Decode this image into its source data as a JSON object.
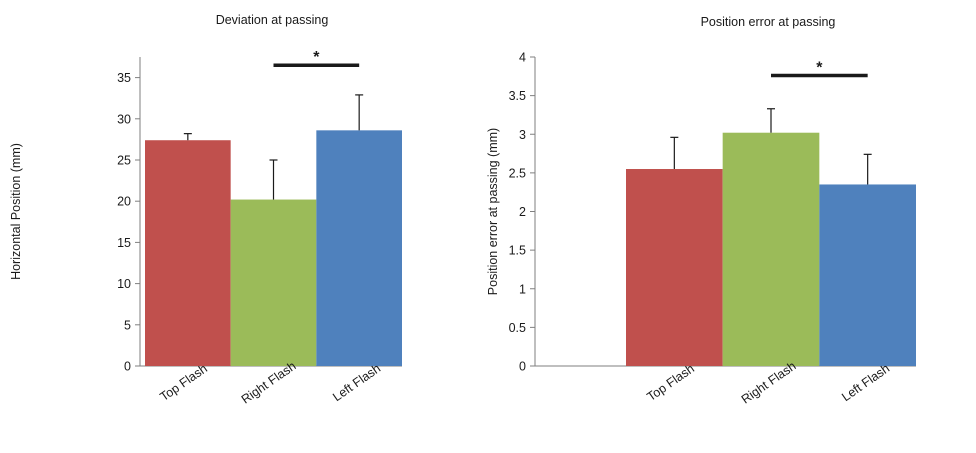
{
  "colors": {
    "top_flash": "#C0504D",
    "right_flash": "#9BBB59",
    "left_flash": "#4F81BD",
    "axis": "#7f7f7f",
    "error_bar": "#1a1a1a",
    "significance_bar": "#1a1a1a"
  },
  "chart_data": [
    {
      "type": "bar",
      "title": "Deviation at passing",
      "xlabel": "",
      "ylabel": "Horizontal Position (mm)",
      "categories": [
        "Top Flash",
        "Right Flash",
        "Left Flash"
      ],
      "values": [
        27.4,
        20.2,
        28.6
      ],
      "errors": [
        0.8,
        4.8,
        4.3
      ],
      "ylim": [
        0,
        37.5
      ],
      "yticks": [
        0,
        5,
        10,
        15,
        20,
        25,
        30,
        35
      ],
      "ytick_labels": [
        "0",
        "5",
        "10",
        "15",
        "20",
        "25",
        "30",
        "35"
      ],
      "grid": false,
      "legend": "none",
      "significance": {
        "from": "Right Flash",
        "to": "Left Flash",
        "y": 36.5,
        "label": "*"
      }
    },
    {
      "type": "bar",
      "title": "Position error at passing",
      "xlabel": "",
      "ylabel": "Position error at passing  (mm)",
      "categories": [
        "Top Flash",
        "Right Flash",
        "Left Flash"
      ],
      "values": [
        2.55,
        3.02,
        2.35
      ],
      "errors": [
        0.41,
        0.31,
        0.39
      ],
      "ylim": [
        0,
        4
      ],
      "yticks": [
        0,
        0.5,
        1,
        1.5,
        2,
        2.5,
        3,
        3.5,
        4
      ],
      "ytick_labels": [
        "0",
        "0.5",
        "1",
        "1.5",
        "2",
        "2.5",
        "3",
        "3.5",
        "4"
      ],
      "grid": false,
      "legend": "none",
      "significance": {
        "from": "Right Flash",
        "to": "Left Flash",
        "y": 3.76,
        "label": "*"
      }
    }
  ]
}
